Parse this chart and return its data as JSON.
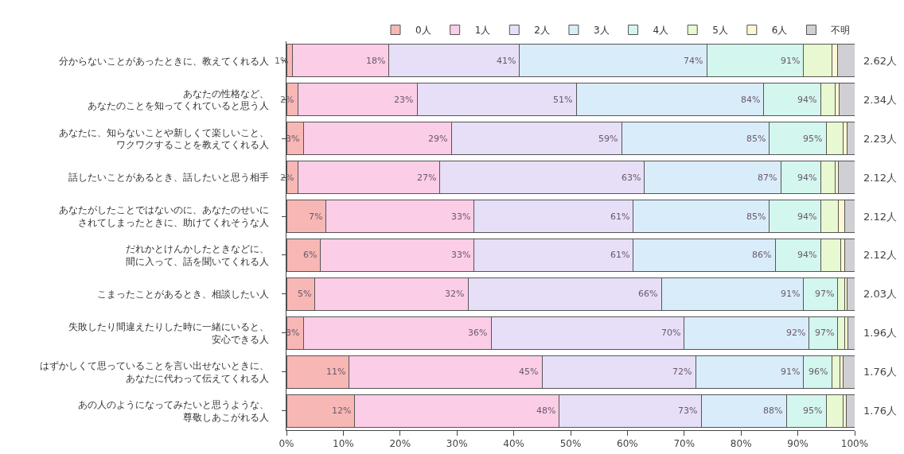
{
  "chart_data": {
    "type": "bar",
    "orientation": "horizontal",
    "stacked": true,
    "categories": [
      "分からないことがあったときに、教えてくれる人",
      "あなたの性格など、あなたのことを知ってくれていると思う人",
      "あなたに、知らないことや新しくて楽しいこと、ワクワクすることを教えてくれる人",
      "話したいことがあるとき、話したいと思う相手",
      "あなたがしたことではないのに、あなたのせいにされてしまったときに、助けてくれそうな人",
      "だれかとけんかしたときなどに、間に入って、話を聞いてくれる人",
      "こまったことがあるとき、相談したい人",
      "失敗したり間違えたりした時に一緒にいると、安心できる人",
      "はずかしくて思っていることを言い出せないときに、あなたに代わって伝えてくれる人",
      "あの人のようになってみたいと思うような、尊敬しあこがれる人"
    ],
    "series": [
      {
        "name": "0人",
        "color": "#f7b7b5",
        "values": [
          1,
          2,
          3,
          2,
          7,
          6,
          5,
          3,
          11,
          12
        ],
        "value_labels": [
          "1%",
          "2%",
          "3%",
          "2%",
          "7%",
          "6%",
          "5%",
          "3%",
          "11%",
          "12%"
        ]
      },
      {
        "name": "1人",
        "color": "#fbcde6",
        "values": [
          17,
          21,
          26,
          25,
          26,
          27,
          27,
          33,
          34,
          36
        ]
      },
      {
        "name": "2人",
        "color": "#e7def7",
        "values": [
          23,
          28,
          30,
          36,
          28,
          28,
          34,
          34,
          27,
          25
        ]
      },
      {
        "name": "3人",
        "color": "#d9ecf9",
        "values": [
          33,
          33,
          26,
          24,
          24,
          25,
          25,
          22,
          19,
          15
        ]
      },
      {
        "name": "4人",
        "color": "#d3f6ef",
        "values": [
          17,
          10,
          10,
          7,
          9,
          8,
          6,
          5,
          5,
          7
        ]
      },
      {
        "name": "5人",
        "color": "#e8f8d0",
        "values": [
          5,
          2.5,
          2.9,
          2.5,
          3.1,
          3.5,
          1.2,
          1.3,
          1.4,
          2.9
        ]
      },
      {
        "name": "6人",
        "color": "#fdf8d3",
        "values": [
          1,
          0.7,
          0.7,
          0.6,
          1.1,
          0.8,
          0.5,
          0.5,
          0.6,
          0.6
        ]
      },
      {
        "name": "不明",
        "color": "#cfcfd4",
        "values": [
          3,
          2.8,
          1.4,
          2.9,
          1.8,
          1.7,
          1.3,
          1.2,
          2.0,
          1.5
        ]
      }
    ],
    "annotations": [
      "2.62人",
      "2.34人",
      "2.23人",
      "2.12人",
      "2.12人",
      "2.12人",
      "2.03人",
      "1.96人",
      "1.76人",
      "1.76人",
      {
        "text": "18%",
        "x": 18,
        "y": "分からないことがあったときに、教えてくれる人"
      },
      {
        "text": "41%",
        "x": 41,
        "y": "分からないことがあったときに、教えてくれる人"
      },
      {
        "text": "74%",
        "x": 74,
        "y": "分からないことがあったときに、教えてくれる人"
      },
      {
        "text": "91%",
        "x": 91,
        "y": "分からないことがあったときに、教えてくれる人"
      },
      {
        "text": "23%",
        "x": 23,
        "y": "あなたの性格など、あなたのことを知ってくれていると思う人"
      },
      {
        "text": "51%",
        "x": 51,
        "y": "あなたの性格など、あなたのことを知ってくれていると思う人"
      },
      {
        "text": "84%",
        "x": 84,
        "y": "あなたの性格など、あなたのことを知ってくれていると思う人"
      },
      {
        "text": "94%",
        "x": 94,
        "y": "あなたの性格など、あなたのことを知ってくれていると思う人"
      },
      {
        "text": "29%",
        "x": 29,
        "y": "あなたに、知らないことや新しくて楽しいこと、ワクワクすることを教えてくれる人"
      },
      {
        "text": "59%",
        "x": 59,
        "y": "あなたに、知らないことや新しくて楽しいこと、ワクワクすることを教えてくれる人"
      },
      {
        "text": "85%",
        "x": 85,
        "y": "あなたに、知らないことや新しくて楽しいこと、ワクワクすることを教えてくれる人"
      },
      {
        "text": "95%",
        "x": 95,
        "y": "あなたに、知らないことや新しくて楽しいこと、ワクワクすることを教えてくれる人"
      },
      {
        "text": "27%",
        "x": 27,
        "y": "話したいことがあるとき、話したいと思う相手"
      },
      {
        "text": "63%",
        "x": 63,
        "y": "話したいことがあるとき、話したいと思う相手"
      },
      {
        "text": "87%",
        "x": 87,
        "y": "話したいことがあるとき、話したいと思う相手"
      },
      {
        "text": "94%",
        "x": 94,
        "y": "話したいことがあるとき、話したいと思う相手"
      },
      {
        "text": "33%",
        "x": 33,
        "y": "あなたがしたことではないのに、あなたのせいにされてしまったときに、助けてくれそうな人"
      },
      {
        "text": "61%",
        "x": 61,
        "y": "あなたがしたことではないのに、あなたのせいにされてしまったときに、助けてくれそうな人"
      },
      {
        "text": "85%",
        "x": 85,
        "y": "あなたがしたことではないのに、あなたのせいにされてしまったときに、助けてくれそうな人"
      },
      {
        "text": "94%",
        "x": 94,
        "y": "あなたがしたことではないのに、あなたのせいにされてしまったときに、助けてくれそうな人"
      },
      {
        "text": "33%",
        "x": 33,
        "y": "だれかとけんかしたときなどに、間に入って、話を聞いてくれる人"
      },
      {
        "text": "61%",
        "x": 61,
        "y": "だれかとけんかしたときなどに、間に入って、話を聞いてくれる人"
      },
      {
        "text": "86%",
        "x": 86,
        "y": "だれかとけんかしたときなどに、間に入って、話を聞いてくれる人"
      },
      {
        "text": "94%",
        "x": 94,
        "y": "だれかとけんかしたときなどに、間に入って、話を聞いてくれる人"
      },
      {
        "text": "32%",
        "x": 32,
        "y": "こまったことがあるとき、相談したい人"
      },
      {
        "text": "66%",
        "x": 66,
        "y": "こまったことがあるとき、相談したい人"
      },
      {
        "text": "91%",
        "x": 91,
        "y": "こまったことがあるとき、相談したい人"
      },
      {
        "text": "97%",
        "x": 97,
        "y": "こまったことがあるとき、相談したい人"
      },
      {
        "text": "36%",
        "x": 36,
        "y": "失敗したり間違えたりした時に一緒にいると、安心できる人"
      },
      {
        "text": "70%",
        "x": 70,
        "y": "失敗したり間違えたりした時に一緒にいると、安心できる人"
      },
      {
        "text": "92%",
        "x": 92,
        "y": "失敗したり間違えたりした時に一緒にいると、安心できる人"
      },
      {
        "text": "97%",
        "x": 97,
        "y": "失敗したり間違えたりした時に一緒にいると、安心できる人"
      },
      {
        "text": "45%",
        "x": 45,
        "y": "はずかしくて思っていることを言い出せないときに、あなたに代わって伝えてくれる人"
      },
      {
        "text": "72%",
        "x": 72,
        "y": "はずかしくて思っていることを言い出せないときに、あなたに代わって伝えてくれる人"
      },
      {
        "text": "91%",
        "x": 91,
        "y": "はずかしくて思っていることを言い出せないときに、あなたに代わって伝えてくれる人"
      },
      {
        "text": "96%",
        "x": 96,
        "y": "はずかしくて思っていることを言い出せないときに、あなたに代わって伝えてくれる人"
      },
      {
        "text": "48%",
        "x": 48,
        "y": "あの人のようになってみたいと思うような、尊敬しあこがれる人"
      },
      {
        "text": "73%",
        "x": 73,
        "y": "あの人のようになってみたいと思うような、尊敬しあこがれる人"
      },
      {
        "text": "88%",
        "x": 88,
        "y": "あの人のようになってみたいと思うような、尊敬しあこがれる人"
      },
      {
        "text": "95%",
        "x": 95,
        "y": "あの人のようになってみたいと思うような、尊敬しあこがれる人"
      }
    ],
    "xlim": [
      0,
      100
    ],
    "xticks": [
      {
        "value": 0,
        "label": "0%"
      },
      {
        "value": 10,
        "label": "10%"
      },
      {
        "value": 20,
        "label": "20%"
      },
      {
        "value": 30,
        "label": "30%"
      },
      {
        "value": 40,
        "label": "40%"
      },
      {
        "value": 50,
        "label": "50%"
      },
      {
        "value": 60,
        "label": "60%"
      },
      {
        "value": 70,
        "label": "70%"
      },
      {
        "value": 80,
        "label": "80%"
      },
      {
        "value": 90,
        "label": "90%"
      },
      {
        "value": 100,
        "label": "100%"
      }
    ],
    "legend": "top"
  }
}
